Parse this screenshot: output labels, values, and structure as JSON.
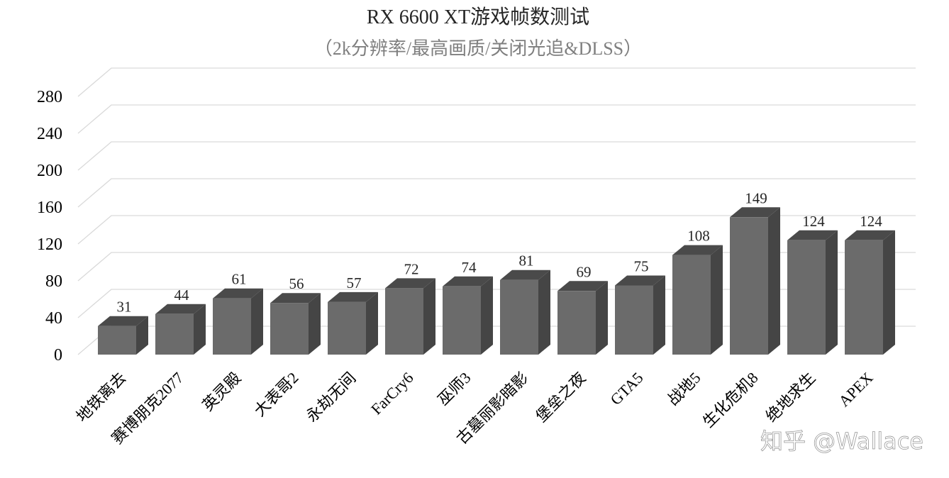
{
  "chart_data": {
    "type": "bar",
    "title": "RX 6600 XT游戏帧数测试",
    "subtitle": "（2k分辨率/最高画质/关闭光追&DLSS）",
    "categories": [
      "地铁离去",
      "赛博朋克2077",
      "英灵殿",
      "大表哥2",
      "永劫无间",
      "FarCry6",
      "巫师3",
      "古墓丽影暗影",
      "堡垒之夜",
      "GTA5",
      "战地5",
      "生化危机8",
      "绝地求生",
      "APEX"
    ],
    "values": [
      31,
      44,
      61,
      56,
      57,
      72,
      74,
      81,
      69,
      75,
      108,
      149,
      124,
      124
    ],
    "data_labels": [
      "31",
      "44",
      "61",
      "56",
      "57",
      "72",
      "74",
      "81",
      "69",
      "75",
      "108",
      "149",
      "124",
      "124"
    ],
    "yticks": [
      "0",
      "40",
      "80",
      "120",
      "160",
      "200",
      "240",
      "280"
    ],
    "ylim": [
      0,
      280
    ],
    "xlabel": "",
    "ylabel": "",
    "grid": true,
    "style": "3d-column",
    "colors": {
      "bar_front": "#6b6b6b",
      "bar_top": "#4a4a4a",
      "bar_side": "#454545",
      "gridline": "#d9d9d9"
    }
  },
  "watermark": {
    "text": "知乎 @Wallace"
  }
}
